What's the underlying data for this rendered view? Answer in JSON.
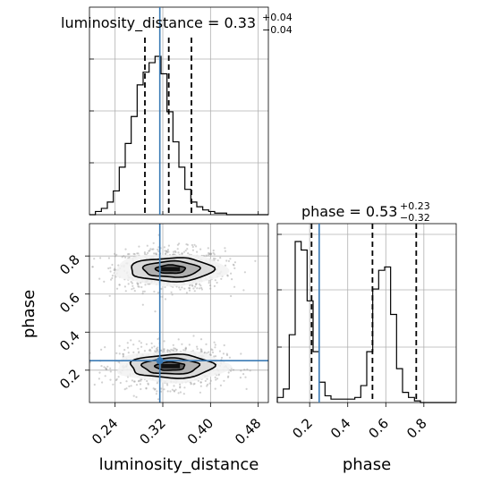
{
  "chart_data": {
    "type": "corner",
    "parameters": [
      "luminosity_distance",
      "phase"
    ],
    "titles": {
      "luminosity_distance": {
        "prefix": "luminosity_distance = 0.33",
        "plus": "+0.04",
        "minus": "−0.04"
      },
      "phase": {
        "prefix": "phase = 0.53",
        "plus": "+0.23",
        "minus": "−0.32"
      }
    },
    "xlabels": {
      "luminosity_distance": "luminosity_distance",
      "phase": "phase"
    },
    "ylabels": {
      "phase": "phase"
    },
    "ticks": {
      "luminosity_distance": [
        "0.24",
        "0.32",
        "0.40",
        "0.48"
      ],
      "phase": [
        "0.2",
        "0.4",
        "0.6",
        "0.8"
      ]
    },
    "ranges": {
      "luminosity_distance": [
        0.197,
        0.497
      ],
      "phase": [
        0.03,
        0.97
      ]
    },
    "truths": {
      "luminosity_distance": 0.315,
      "phase": 0.25
    },
    "quantiles": {
      "luminosity_distance": [
        0.29,
        0.33,
        0.368
      ],
      "phase": [
        0.21,
        0.53,
        0.76
      ]
    },
    "hist_luminosity_distance": {
      "bin_start": 0.197,
      "bin_width": 0.01,
      "counts": [
        0,
        0.02,
        0.04,
        0.08,
        0.15,
        0.3,
        0.45,
        0.62,
        0.82,
        0.9,
        0.96,
        1.0,
        0.89,
        0.65,
        0.46,
        0.3,
        0.16,
        0.08,
        0.05,
        0.03,
        0.02,
        0.01,
        0.01,
        0.0,
        0,
        0,
        0,
        0,
        0,
        0
      ]
    },
    "hist_phase": {
      "bin_start": 0.03,
      "bin_width": 0.03133,
      "counts": [
        0.03,
        0.08,
        0.4,
        0.95,
        0.9,
        0.6,
        0.3,
        0.12,
        0.04,
        0.02,
        0.02,
        0.02,
        0.02,
        0.03,
        0.1,
        0.3,
        0.67,
        0.78,
        0.8,
        0.52,
        0.2,
        0.06,
        0.03,
        0.01,
        0.0,
        0,
        0,
        0,
        0,
        0
      ]
    },
    "scatter_centers": [
      {
        "luminosity_distance": 0.333,
        "phase": 0.73,
        "sd_x": 0.045,
        "sd_y": 0.055,
        "weight": 0.5
      },
      {
        "luminosity_distance": 0.333,
        "phase": 0.22,
        "sd_x": 0.045,
        "sd_y": 0.055,
        "weight": 0.5
      }
    ]
  }
}
